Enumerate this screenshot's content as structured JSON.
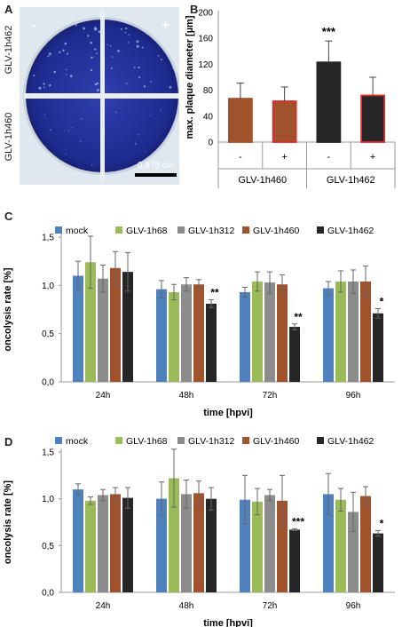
{
  "panels": {
    "a": "A",
    "b": "B",
    "c": "C",
    "d": "D"
  },
  "photo": {
    "row_top_label": "GLV-1h462",
    "row_bottom_label": "GLV-1h460",
    "minus": "-",
    "plus": "+",
    "scale_label": "0,875 cm"
  },
  "chart_data": [
    {
      "id": "B",
      "type": "bar",
      "ylabel": "max. plaque diameter [µm]",
      "ylim": [
        0,
        200
      ],
      "yticks": [
        "0",
        "40",
        "80",
        "120",
        "160",
        "200"
      ],
      "sign_labels": [
        "-",
        "+",
        "-",
        "+"
      ],
      "group_labels": [
        "GLV-1h460",
        "GLV-1h462"
      ],
      "values": [
        67,
        63,
        123,
        72
      ],
      "errors": [
        24,
        22,
        33,
        28
      ],
      "fills": [
        "#a0522d",
        "#a0522d",
        "#262626",
        "#262626"
      ],
      "strokes": [
        "#a0522d",
        "#e8262b",
        "#262626",
        "#e8262b"
      ],
      "annotations": [
        "",
        "",
        "***",
        ""
      ]
    },
    {
      "id": "C",
      "type": "bar",
      "ylabel": "oncolysis rate [%]",
      "xlabel": "time [hpvi]",
      "ylim": [
        0,
        1.5
      ],
      "yticks": [
        "0,0",
        "0,5",
        "1,0",
        "1,5"
      ],
      "categories": [
        "24h",
        "48h",
        "72h",
        "96h"
      ],
      "legend": [
        "mock",
        "GLV-1h68",
        "GLV-1h312",
        "GLV-1h460",
        "GLV-1h462"
      ],
      "colors": [
        "#4f81bd",
        "#9bbb59",
        "#8c8c8c",
        "#a0522d",
        "#262626"
      ],
      "series": [
        {
          "name": "mock",
          "values": [
            1.1,
            0.96,
            0.93,
            0.97
          ],
          "errors": [
            0.15,
            0.09,
            0.05,
            0.07
          ]
        },
        {
          "name": "GLV-1h68",
          "values": [
            1.24,
            0.93,
            1.04,
            1.04
          ],
          "errors": [
            0.27,
            0.08,
            0.1,
            0.11
          ]
        },
        {
          "name": "GLV-1h312",
          "values": [
            1.07,
            1.01,
            1.03,
            1.04
          ],
          "errors": [
            0.14,
            0.07,
            0.11,
            0.12
          ]
        },
        {
          "name": "GLV-1h460",
          "values": [
            1.18,
            1.01,
            1.01,
            1.04
          ],
          "errors": [
            0.17,
            0.05,
            0.1,
            0.16
          ]
        },
        {
          "name": "GLV-1h462",
          "values": [
            1.14,
            0.81,
            0.57,
            0.71
          ],
          "errors": [
            0.2,
            0.04,
            0.03,
            0.05
          ]
        }
      ],
      "annotations": [
        [
          "",
          "",
          "",
          "",
          ""
        ],
        [
          "",
          "",
          "",
          "",
          "**"
        ],
        [
          "",
          "",
          "",
          "",
          "**"
        ],
        [
          "",
          "",
          "",
          "",
          "*"
        ]
      ]
    },
    {
      "id": "D",
      "type": "bar",
      "ylabel": "oncolysis rate [%]",
      "xlabel": "time [hpvi]",
      "ylim": [
        0,
        1.5
      ],
      "yticks": [
        "0,0",
        "0,5",
        "1,0",
        "1,5"
      ],
      "categories": [
        "24h",
        "48h",
        "72h",
        "96h"
      ],
      "legend": [
        "mock",
        "GLV-1h68",
        "GLV-1h312",
        "GLV-1h460",
        "GLV-1h462"
      ],
      "colors": [
        "#4f81bd",
        "#9bbb59",
        "#8c8c8c",
        "#a0522d",
        "#262626"
      ],
      "series": [
        {
          "name": "mock",
          "values": [
            1.1,
            1.0,
            0.99,
            1.05
          ],
          "errors": [
            0.06,
            0.18,
            0.26,
            0.22
          ]
        },
        {
          "name": "GLV-1h68",
          "values": [
            0.98,
            1.22,
            0.97,
            0.99
          ],
          "errors": [
            0.04,
            0.31,
            0.14,
            0.12
          ]
        },
        {
          "name": "GLV-1h312",
          "values": [
            1.04,
            1.05,
            1.04,
            0.86
          ],
          "errors": [
            0.06,
            0.15,
            0.06,
            0.21
          ]
        },
        {
          "name": "GLV-1h460",
          "values": [
            1.05,
            1.06,
            0.98,
            1.03
          ],
          "errors": [
            0.07,
            0.13,
            0.27,
            0.1
          ]
        },
        {
          "name": "GLV-1h462",
          "values": [
            1.01,
            1.0,
            0.67,
            0.63
          ],
          "errors": [
            0.11,
            0.12,
            0.01,
            0.03
          ]
        }
      ],
      "annotations": [
        [
          "",
          "",
          "",
          "",
          ""
        ],
        [
          "",
          "",
          "",
          "",
          ""
        ],
        [
          "",
          "",
          "",
          "",
          "***"
        ],
        [
          "",
          "",
          "",
          "",
          "*"
        ]
      ]
    }
  ]
}
